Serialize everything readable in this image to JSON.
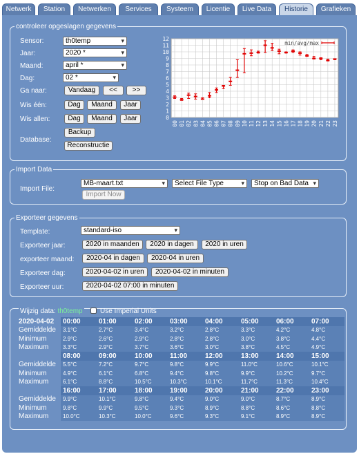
{
  "tabs": [
    {
      "label": "Netwerk"
    },
    {
      "label": "Station"
    },
    {
      "label": "Netwerken"
    },
    {
      "label": "Services"
    },
    {
      "label": "Systeem"
    },
    {
      "label": "Licentie"
    },
    {
      "label": "Live Data"
    },
    {
      "label": "Historie"
    },
    {
      "label": "Grafieken"
    }
  ],
  "stored": {
    "legend": "controleer opgeslagen gegevens",
    "sensor_label": "Sensor:",
    "sensor_value": "th0temp",
    "jaar_label": "Jaar:",
    "jaar_value": "2020 *",
    "maand_label": "Maand:",
    "maand_value": "april *",
    "dag_label": "Dag:",
    "dag_value": "02 *",
    "ganaar_label": "Ga naar:",
    "vandaag": "Vandaag",
    "prev": "<<",
    "next": ">>",
    "wiseen_label": "Wis één:",
    "wisallen_label": "Wis allen:",
    "dag": "Dag",
    "maand": "Maand",
    "jaar": "Jaar",
    "database_label": "Database:",
    "backup": "Backup",
    "reconstructie": "Reconstructie"
  },
  "chart_data": {
    "type": "line",
    "legend": "min/avg/max",
    "categories": [
      "00",
      "01",
      "02",
      "03",
      "04",
      "05",
      "06",
      "07",
      "08",
      "09",
      "10",
      "11",
      "12",
      "13",
      "14",
      "15",
      "16",
      "17",
      "18",
      "19",
      "20",
      "21",
      "22",
      "23"
    ],
    "avg": [
      3.1,
      2.7,
      3.4,
      3.2,
      2.8,
      3.3,
      4.2,
      4.8,
      5.5,
      7.2,
      9.7,
      9.8,
      9.9,
      11.0,
      10.6,
      10.1,
      9.9,
      10.1,
      9.8,
      9.4,
      9.0,
      9.0,
      8.7,
      8.9
    ],
    "min": [
      2.9,
      2.6,
      2.9,
      2.8,
      2.8,
      3.0,
      3.8,
      4.4,
      4.9,
      6.1,
      6.8,
      9.4,
      9.8,
      9.9,
      10.2,
      9.7,
      9.8,
      9.9,
      9.5,
      9.3,
      8.9,
      8.8,
      8.6,
      8.8
    ],
    "max": [
      3.3,
      2.9,
      3.7,
      3.6,
      3.0,
      3.8,
      4.5,
      4.9,
      6.1,
      8.8,
      10.5,
      10.3,
      10.1,
      11.7,
      11.3,
      10.4,
      10.0,
      10.3,
      10.0,
      9.6,
      9.3,
      9.1,
      8.9,
      8.9
    ],
    "ylim": [
      0,
      12
    ],
    "yticks": [
      "0",
      "1",
      "2",
      "3",
      "4",
      "5",
      "6",
      "7",
      "8",
      "9",
      "10",
      "11",
      "12"
    ],
    "grid": true,
    "legend_position": "top-right",
    "series_color": "#e00000"
  },
  "import": {
    "legend": "Import Data",
    "file_label": "Import File:",
    "file_value": "MB-maart.txt",
    "filetype": "Select File Type",
    "stop": "Stop on Bad Data",
    "now": "Import Now"
  },
  "export": {
    "legend": "Exporteer gegevens",
    "template_label": "Template:",
    "template_value": "standard-iso",
    "jaar_label": "Exporteer jaar:",
    "jaar_b1": "2020 in maanden",
    "jaar_b2": "2020 in dagen",
    "jaar_b3": "2020 in uren",
    "maand_label": "exporteer maand:",
    "maand_b1": "2020-04 in dagen",
    "maand_b2": "2020-04 in uren",
    "dag_label": "Exporteer dag:",
    "dag_b1": "2020-04-02 in uren",
    "dag_b2": "2020-04-02 in minuten",
    "uur_label": "Exporteer uur:",
    "uur_b1": "2020-04-02 07:00 in minuten"
  },
  "edit": {
    "legend_prefix": "Wijzig data:",
    "legend_sensor": "th0temp",
    "imperial": "Use Imperial Units",
    "sensor_color": "#7cf29a",
    "date": "2020-04-02",
    "row_labels": {
      "avg": "Gemiddelde",
      "min": "Minimum",
      "max": "Maximum"
    },
    "blocks": [
      {
        "hours": [
          "00:00",
          "01:00",
          "02:00",
          "03:00",
          "04:00",
          "05:00",
          "06:00",
          "07:00"
        ],
        "avg": [
          "3.1°C",
          "2.7°C",
          "3.4°C",
          "3.2°C",
          "2.8°C",
          "3.3°C",
          "4.2°C",
          "4.8°C"
        ],
        "min": [
          "2.9°C",
          "2.6°C",
          "2.9°C",
          "2.8°C",
          "2.8°C",
          "3.0°C",
          "3.8°C",
          "4.4°C"
        ],
        "max": [
          "3.3°C",
          "2.9°C",
          "3.7°C",
          "3.6°C",
          "3.0°C",
          "3.8°C",
          "4.5°C",
          "4.9°C"
        ]
      },
      {
        "hours": [
          "08:00",
          "09:00",
          "10:00",
          "11:00",
          "12:00",
          "13:00",
          "14:00",
          "15:00"
        ],
        "avg": [
          "5.5°C",
          "7.2°C",
          "9.7°C",
          "9.8°C",
          "9.9°C",
          "11.0°C",
          "10.6°C",
          "10.1°C"
        ],
        "min": [
          "4.9°C",
          "6.1°C",
          "6.8°C",
          "9.4°C",
          "9.8°C",
          "9.9°C",
          "10.2°C",
          "9.7°C"
        ],
        "max": [
          "6.1°C",
          "8.8°C",
          "10.5°C",
          "10.3°C",
          "10.1°C",
          "11.7°C",
          "11.3°C",
          "10.4°C"
        ]
      },
      {
        "hours": [
          "16:00",
          "17:00",
          "18:00",
          "19:00",
          "20:00",
          "21:00",
          "22:00",
          "23:00"
        ],
        "avg": [
          "9.9°C",
          "10.1°C",
          "9.8°C",
          "9.4°C",
          "9.0°C",
          "9.0°C",
          "8.7°C",
          "8.9°C"
        ],
        "min": [
          "9.8°C",
          "9.9°C",
          "9.5°C",
          "9.3°C",
          "8.9°C",
          "8.8°C",
          "8.6°C",
          "8.8°C"
        ],
        "max": [
          "10.0°C",
          "10.3°C",
          "10.0°C",
          "9.6°C",
          "9.3°C",
          "9.1°C",
          "8.9°C",
          "8.9°C"
        ]
      }
    ]
  }
}
